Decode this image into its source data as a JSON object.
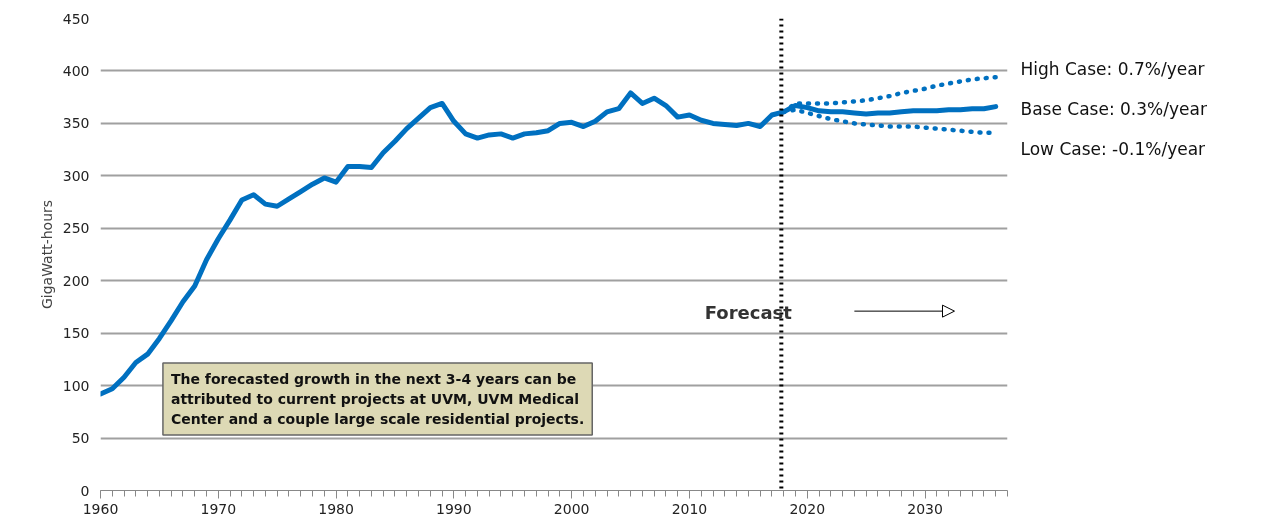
{
  "chart_data": {
    "type": "line",
    "ylabel": "GigaWatt-hours",
    "xlim": [
      1960,
      2037
    ],
    "xticks": [
      1960,
      1970,
      1980,
      1990,
      2000,
      2010,
      2020,
      2030
    ],
    "ylim": [
      0,
      450
    ],
    "yticks": [
      0,
      50,
      100,
      150,
      200,
      250,
      300,
      350,
      400,
      450
    ],
    "grid": "y",
    "marker": "none",
    "series": [
      {
        "name": "Base Case: 0.3%/year",
        "color": "#0070c0",
        "line_style": "solid",
        "x": [
          1960,
          1961,
          1962,
          1963,
          1964,
          1965,
          1966,
          1967,
          1968,
          1969,
          1970,
          1971,
          1972,
          1973,
          1974,
          1975,
          1976,
          1977,
          1978,
          1979,
          1980,
          1981,
          1982,
          1983,
          1984,
          1985,
          1986,
          1987,
          1988,
          1989,
          1990,
          1991,
          1992,
          1993,
          1994,
          1995,
          1996,
          1997,
          1998,
          1999,
          2000,
          2001,
          2002,
          2003,
          2004,
          2005,
          2006,
          2007,
          2008,
          2009,
          2010,
          2011,
          2012,
          2013,
          2014,
          2015,
          2016,
          2017,
          2018,
          2019,
          2020,
          2021,
          2022,
          2023,
          2024,
          2025,
          2026,
          2027,
          2028,
          2029,
          2030,
          2031,
          2032,
          2033,
          2034,
          2035,
          2036
        ],
        "values": [
          92,
          97,
          108,
          122,
          130,
          145,
          162,
          180,
          195,
          220,
          240,
          258,
          277,
          282,
          273,
          271,
          278,
          285,
          292,
          298,
          294,
          309,
          309,
          308,
          322,
          333,
          345,
          355,
          365,
          369,
          352,
          340,
          336,
          339,
          340,
          336,
          340,
          341,
          343,
          350,
          351,
          347,
          352,
          361,
          364,
          379,
          369,
          374,
          367,
          356,
          358,
          353,
          350,
          349,
          348,
          350,
          347,
          358,
          361,
          367,
          365,
          362,
          361,
          361,
          360,
          359,
          360,
          360,
          361,
          362,
          362,
          362,
          363,
          363,
          364,
          364,
          366
        ]
      },
      {
        "name": "High Case: 0.7%/year",
        "color": "#0070c0",
        "line_style": "dotted",
        "x": [
          2018,
          2019,
          2020,
          2021,
          2022,
          2023,
          2024,
          2025,
          2026,
          2027,
          2028,
          2029,
          2030,
          2031,
          2032,
          2033,
          2034,
          2035,
          2036
        ],
        "values": [
          361,
          369,
          369,
          369,
          369,
          370,
          371,
          372,
          374,
          376,
          379,
          381,
          383,
          386,
          388,
          390,
          392,
          393,
          394
        ]
      },
      {
        "name": "Low Case: -0.1%/year",
        "color": "#0070c0",
        "line_style": "dotted",
        "x": [
          2018,
          2019,
          2020,
          2021,
          2022,
          2023,
          2024,
          2025,
          2026,
          2027,
          2028,
          2029,
          2030,
          2031,
          2032,
          2033,
          2034,
          2035,
          2036
        ],
        "values": [
          361,
          363,
          360,
          357,
          354,
          352,
          350,
          349,
          348,
          347,
          347,
          347,
          346,
          345,
          344,
          343,
          342,
          341,
          341
        ]
      }
    ],
    "ref_lines": [
      {
        "axis": "x",
        "value": 2017.8,
        "color": "#000000",
        "line_style": "dotted"
      }
    ],
    "annotations": [
      "Forecast",
      "The forecasted growth in the next 3-4 years can be\nattributed to current projects at UVM, UVM Medical\nCenter and a couple large scale residential projects."
    ]
  }
}
